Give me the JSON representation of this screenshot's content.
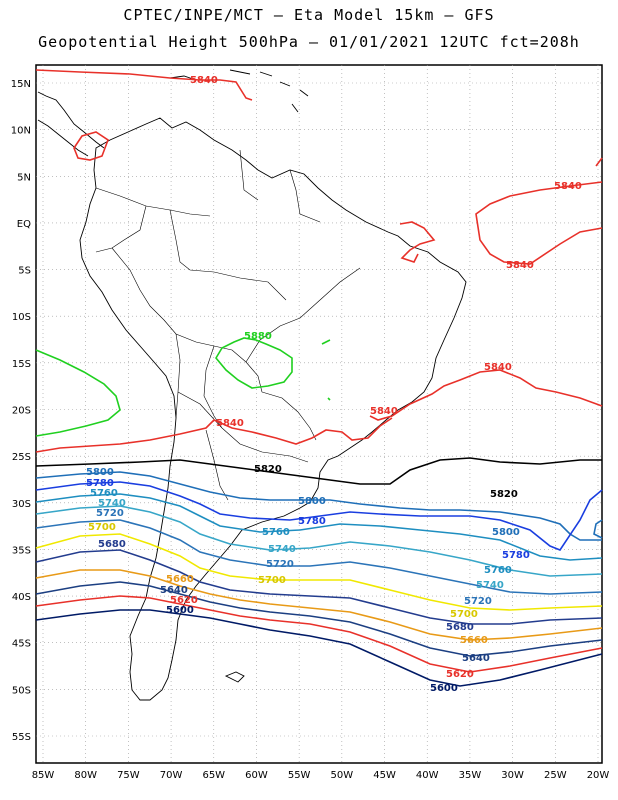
{
  "header": {
    "title_line1": "CPTEC/INPE/MCT –  Eta Model 15km – GFS",
    "title_line2": "Geopotential Height 500hPa – 01/01/2021 12UTC fct=208h"
  },
  "axes": {
    "lat_labels": [
      "15N",
      "10N",
      "5N",
      "EQ",
      "5S",
      "10S",
      "15S",
      "20S",
      "25S",
      "30S",
      "35S",
      "40S",
      "45S",
      "50S",
      "55S"
    ],
    "lon_labels": [
      "85W",
      "80W",
      "75W",
      "70W",
      "65W",
      "60W",
      "55W",
      "50W",
      "45W",
      "40W",
      "35W",
      "30W",
      "25W",
      "20W"
    ]
  },
  "colors": {
    "c5600": "#001a66",
    "c5620": "#e8312a",
    "c5640": "#1c3f82",
    "c5660": "#e89a17",
    "c5680": "#233c8e",
    "c5700": "#f0e800",
    "c5720": "#2b74b8",
    "c5740": "#37a6c8",
    "c5760": "#1e8ec0",
    "c5780": "#1a3ee0",
    "c5800": "#1f6fb8",
    "c5820": "#000000",
    "c5840": "#e8312a",
    "c5880": "#20d020",
    "coast": "#000000",
    "grid": "#9a9a9a"
  },
  "contour_labels": [
    {
      "id": "l5840a",
      "text": "5840",
      "color": "#e8312a"
    },
    {
      "id": "l5840b",
      "text": "5840",
      "color": "#e8312a"
    },
    {
      "id": "l5840c",
      "text": "5840",
      "color": "#e8312a"
    },
    {
      "id": "l5840d",
      "text": "5840",
      "color": "#e8312a"
    },
    {
      "id": "l5840e",
      "text": "5840",
      "color": "#e8312a"
    },
    {
      "id": "l5840f",
      "text": "5840",
      "color": "#e8312a"
    },
    {
      "id": "l5880",
      "text": "5880",
      "color": "#20d020"
    },
    {
      "id": "l5820a",
      "text": "5820",
      "color": "#000000"
    },
    {
      "id": "l5820b",
      "text": "5820",
      "color": "#000000"
    },
    {
      "id": "l5800a",
      "text": "5800",
      "color": "#1f6fb8"
    },
    {
      "id": "l5800b",
      "text": "5800",
      "color": "#1f6fb8"
    },
    {
      "id": "l5800c",
      "text": "5800",
      "color": "#1f6fb8"
    },
    {
      "id": "l5780a",
      "text": "5780",
      "color": "#1a3ee0"
    },
    {
      "id": "l5780b",
      "text": "5780",
      "color": "#1a3ee0"
    },
    {
      "id": "l5780c",
      "text": "5780",
      "color": "#1a3ee0"
    },
    {
      "id": "l5760a",
      "text": "5760",
      "color": "#1e8ec0"
    },
    {
      "id": "l5760b",
      "text": "5760",
      "color": "#1e8ec0"
    },
    {
      "id": "l5760c",
      "text": "5760",
      "color": "#1e8ec0"
    },
    {
      "id": "l5740a",
      "text": "5740",
      "color": "#37a6c8"
    },
    {
      "id": "l5740b",
      "text": "5740",
      "color": "#37a6c8"
    },
    {
      "id": "l5740c",
      "text": "5740",
      "color": "#37a6c8"
    },
    {
      "id": "l5720a",
      "text": "5720",
      "color": "#2b74b8"
    },
    {
      "id": "l5720b",
      "text": "5720",
      "color": "#2b74b8"
    },
    {
      "id": "l5720c",
      "text": "5720",
      "color": "#2b74b8"
    },
    {
      "id": "l5700a",
      "text": "5700",
      "color": "#d8c800"
    },
    {
      "id": "l5700b",
      "text": "5700",
      "color": "#d8c800"
    },
    {
      "id": "l5700c",
      "text": "5700",
      "color": "#d8c800"
    },
    {
      "id": "l5680a",
      "text": "5680",
      "color": "#233c8e"
    },
    {
      "id": "l5680b",
      "text": "5680",
      "color": "#233c8e"
    },
    {
      "id": "l5660a",
      "text": "5660",
      "color": "#e89a17"
    },
    {
      "id": "l5660b",
      "text": "5660",
      "color": "#e89a17"
    },
    {
      "id": "l5640a",
      "text": "5640",
      "color": "#1c3f82"
    },
    {
      "id": "l5640b",
      "text": "5640",
      "color": "#1c3f82"
    },
    {
      "id": "l5620a",
      "text": "5620",
      "color": "#e8312a"
    },
    {
      "id": "l5620b",
      "text": "5620",
      "color": "#e8312a"
    },
    {
      "id": "l5600a",
      "text": "5600",
      "color": "#001a66"
    },
    {
      "id": "l5600b",
      "text": "5600",
      "color": "#001a66"
    }
  ]
}
